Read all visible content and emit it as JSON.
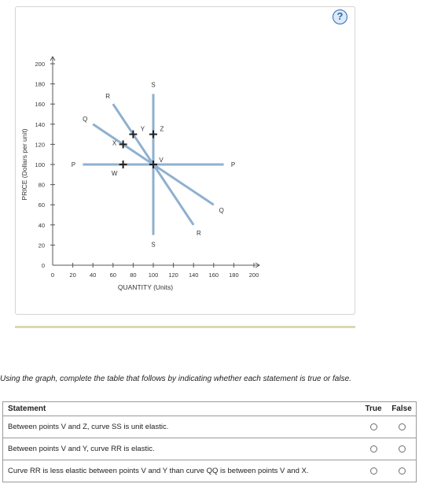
{
  "help": {
    "label": "?"
  },
  "chart_data": {
    "type": "line",
    "xlabel": "QUANTITY (Units)",
    "ylabel": "PRICE (Dollars per unit)",
    "xlim": [
      0,
      200
    ],
    "ylim": [
      0,
      200
    ],
    "xticks": [
      0,
      20,
      40,
      60,
      80,
      100,
      120,
      140,
      160,
      180,
      200
    ],
    "yticks": [
      0,
      20,
      40,
      60,
      80,
      100,
      120,
      140,
      160,
      180,
      200
    ],
    "curves": [
      {
        "name": "PP",
        "label": "P",
        "start": [
          30,
          100
        ],
        "end": [
          170,
          100
        ],
        "color": "#8fb0cf"
      },
      {
        "name": "SS",
        "label": "S",
        "start": [
          100,
          170
        ],
        "end": [
          100,
          30
        ],
        "color": "#8fb0cf"
      },
      {
        "name": "QQ",
        "label": "Q",
        "start": [
          40,
          140
        ],
        "end": [
          160,
          60
        ],
        "color": "#8fb0cf"
      },
      {
        "name": "RR",
        "label": "R",
        "start": [
          60,
          160
        ],
        "end": [
          140,
          40
        ],
        "color": "#8fb0cf"
      }
    ],
    "points": [
      {
        "label": "V",
        "x": 100,
        "y": 100
      },
      {
        "label": "W",
        "x": 70,
        "y": 100
      },
      {
        "label": "X",
        "x": 70,
        "y": 120
      },
      {
        "label": "Y",
        "x": 80,
        "y": 130
      },
      {
        "label": "Z",
        "x": 100,
        "y": 130
      }
    ]
  },
  "instructions": "Using the graph, complete the table that follows by indicating whether each statement is true or false.",
  "table": {
    "headers": {
      "statement": "Statement",
      "true": "True",
      "false": "False"
    },
    "rows": [
      {
        "text": "Between points V and Z, curve SS is unit elastic."
      },
      {
        "text": "Between points V and Y, curve RR is elastic."
      },
      {
        "text": "Curve RR is less elastic between points V and Y than curve QQ is between points V and X."
      }
    ]
  }
}
